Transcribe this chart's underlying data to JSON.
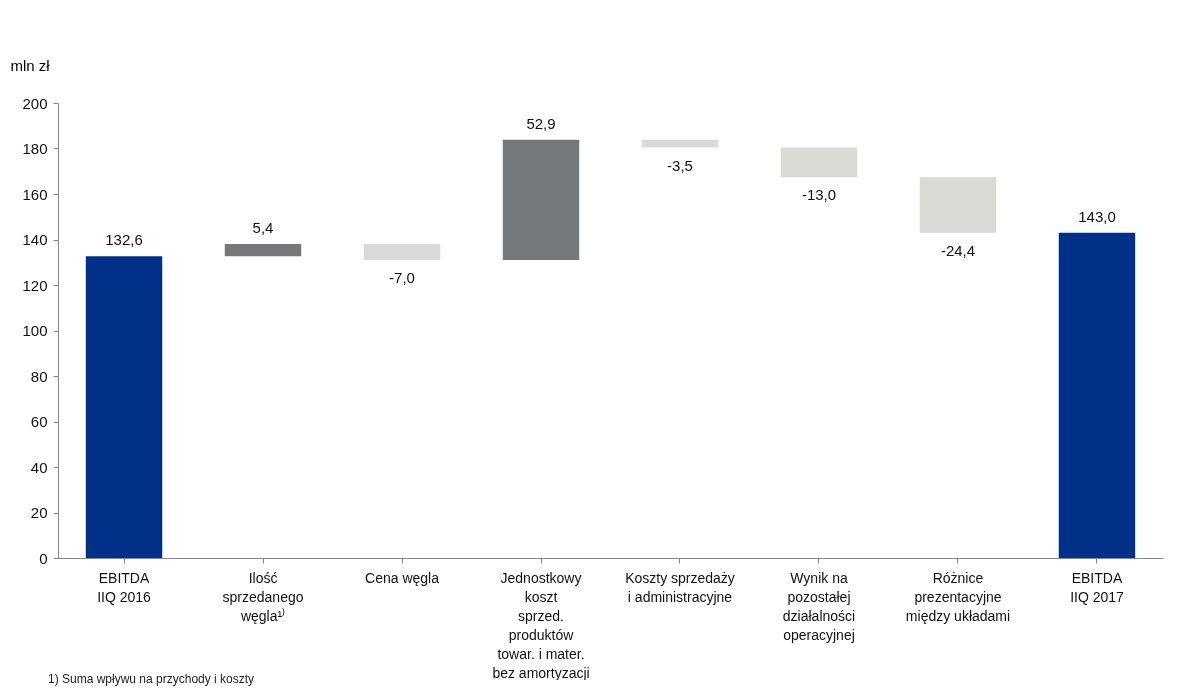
{
  "chart_data": {
    "type": "bar",
    "ylabel": "mln zł",
    "categories": [
      "EBITDA\nIIQ 2016",
      "Ilość\nsprzedanego\nwęgla¹⁾",
      "Cena węgla",
      "Jednostkowy\nkoszt\nsprzed.\nproduktów\ntowar. i mater.\nbez amortyzacji",
      "Koszty sprzedaży\ni administracyjne",
      "Wynik na\npozostałej\ndziałalności\noperacyjnej",
      "Różnice\nprezentacyjne\nmiędzy układami",
      "EBITDA\nIIQ 2017"
    ],
    "values": [
      132.6,
      5.4,
      -7.0,
      52.9,
      -3.5,
      -13.0,
      -24.4,
      143.0
    ],
    "base": [
      0,
      132.6,
      138.0,
      131.0,
      183.9,
      180.4,
      167.4,
      0
    ],
    "colors": [
      "#003087",
      "#76797c",
      "#d9d9d6",
      "#76797c",
      "#d9d9d6",
      "#d9d9d6",
      "#d9d9d6",
      "#003087"
    ],
    "value_labels": [
      "132,6",
      "5,4",
      "-7,0",
      "52,9",
      "-3,5",
      "-13,0",
      "-24,4",
      "143,0"
    ],
    "ylim": [
      0,
      200
    ],
    "yticks": [
      0,
      20,
      40,
      60,
      80,
      100,
      120,
      140,
      160,
      180,
      200
    ],
    "grid": false,
    "annotations": [
      "1) Suma wpływu na przychody i koszty"
    ]
  }
}
